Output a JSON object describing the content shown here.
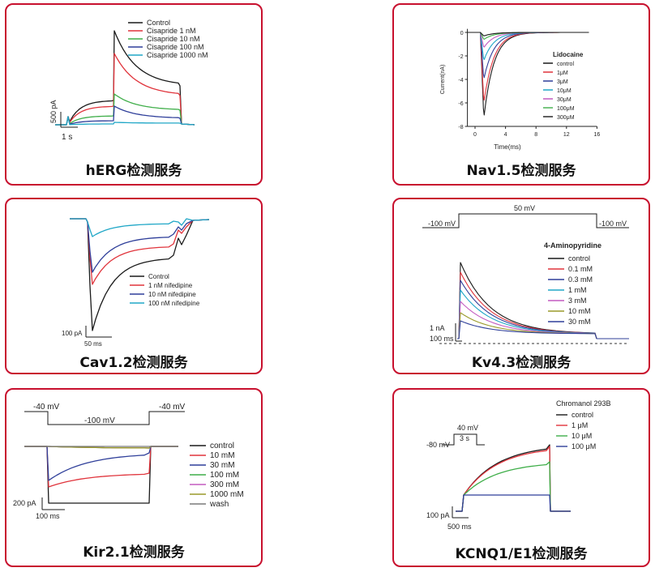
{
  "colors": {
    "border": "#c8102e",
    "black": "#1a1a1a",
    "red": "#e0343c",
    "green": "#3fae49",
    "blue": "#2f3f9a",
    "cyan": "#20a7c7",
    "magenta": "#c35bc0",
    "olive": "#9a9a2a",
    "gray": "#7a7a7a"
  },
  "chart_data": [
    {
      "id": "herg",
      "type": "line",
      "title": "hERG检测服务",
      "series": [
        {
          "name": "Control",
          "color": "#1a1a1a"
        },
        {
          "name": "Cisapride 1 nM",
          "color": "#e0343c"
        },
        {
          "name": "Cisapride 10 nM",
          "color": "#3fae49"
        },
        {
          "name": "Cisapride 100 nM",
          "color": "#2f3f9a"
        },
        {
          "name": "Cisapride 1000 nM",
          "color": "#20a7c7"
        }
      ],
      "scale": {
        "y": "500 pA",
        "x": "1 s"
      }
    },
    {
      "id": "nav15",
      "type": "line",
      "title": "Nav1.5检测服务",
      "xlabel": "Time(ms)",
      "ylabel": "Current(nA)",
      "xticks": [
        "0",
        "4",
        "8",
        "12",
        "16"
      ],
      "yticks": [
        "0",
        "-2",
        "-4",
        "-6",
        "-8"
      ],
      "xlim": [
        -1,
        16
      ],
      "ylim": [
        -8,
        0.3
      ],
      "legend_title": "Lidocaine",
      "series": [
        {
          "name": "control",
          "color": "#1a1a1a",
          "peak": -7.3
        },
        {
          "name": "1μM",
          "color": "#e0343c",
          "peak": -6.0
        },
        {
          "name": "3μM",
          "color": "#2f3f9a",
          "peak": -4.0
        },
        {
          "name": "10μM",
          "color": "#20a7c7",
          "peak": -2.4
        },
        {
          "name": "30μM",
          "color": "#c35bc0",
          "peak": -1.3
        },
        {
          "name": "100μM",
          "color": "#3fae49",
          "peak": -0.6
        },
        {
          "name": "300μM",
          "color": "#1a1a1a",
          "peak": -0.3
        }
      ]
    },
    {
      "id": "cav12",
      "type": "line",
      "title": "Cav1.2检测服务",
      "series": [
        {
          "name": "Control",
          "color": "#1a1a1a"
        },
        {
          "name": "1 nM nifedipine",
          "color": "#e0343c"
        },
        {
          "name": "10 nM nifedipine",
          "color": "#2f3f9a"
        },
        {
          "name": "100 nM nifedipine",
          "color": "#20a7c7"
        }
      ],
      "scale": {
        "y": "100 pA",
        "x": "50 ms"
      }
    },
    {
      "id": "kv43",
      "type": "line",
      "title": "Kv4.3检测服务",
      "protocol": {
        "hold": "-100 mV",
        "step": "50 mV",
        "end": "-100 mV"
      },
      "legend_title": "4-Aminopyridine",
      "series": [
        {
          "name": "control",
          "color": "#1a1a1a"
        },
        {
          "name": "0.1 mM",
          "color": "#e0343c"
        },
        {
          "name": "0.3 mM",
          "color": "#2f3f9a"
        },
        {
          "name": "1 mM",
          "color": "#20a7c7"
        },
        {
          "name": "3 mM",
          "color": "#c35bc0"
        },
        {
          "name": "10 mM",
          "color": "#9a9a2a"
        },
        {
          "name": "30 mM",
          "color": "#2f3f9a"
        }
      ],
      "scale": {
        "y": "1 nA",
        "x": "100 ms"
      }
    },
    {
      "id": "kir21",
      "type": "line",
      "title": "Kir2.1检测服务",
      "protocol": {
        "hold": "-40 mV",
        "step": "-100 mV",
        "end": "-40 mV"
      },
      "series": [
        {
          "name": "control",
          "color": "#1a1a1a"
        },
        {
          "name": "10 mM",
          "color": "#e0343c"
        },
        {
          "name": "30 mM",
          "color": "#2f3f9a"
        },
        {
          "name": "100 mM",
          "color": "#3fae49"
        },
        {
          "name": "300 mM",
          "color": "#c35bc0"
        },
        {
          "name": "1000 mM",
          "color": "#9a9a2a"
        },
        {
          "name": "wash",
          "color": "#7a7a7a"
        }
      ],
      "scale": {
        "y": "200 pA",
        "x": "100 ms"
      }
    },
    {
      "id": "kcnq1",
      "type": "line",
      "title": "KCNQ1/E1检测服务",
      "protocol": {
        "hold": "-80 mV",
        "step": "40 mV",
        "duration": "3 s"
      },
      "legend_title": "Chromanol 293B",
      "series": [
        {
          "name": "control",
          "color": "#1a1a1a"
        },
        {
          "name": "1 μM",
          "color": "#e0343c"
        },
        {
          "name": "10 μM",
          "color": "#3fae49"
        },
        {
          "name": "100 μM",
          "color": "#2f3f9a"
        }
      ],
      "scale": {
        "y": "100 pA",
        "x": "500 ms"
      }
    }
  ]
}
